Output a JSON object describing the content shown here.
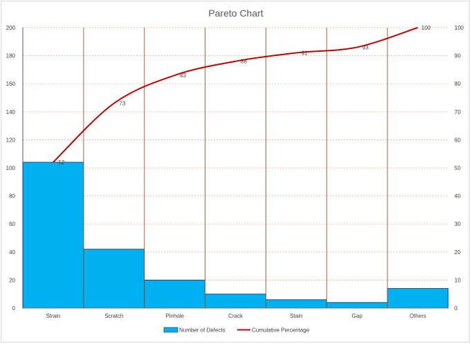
{
  "chart_data": {
    "type": "bar",
    "title": "Pareto Chart",
    "categories": [
      "Strain",
      "Scratch",
      "Pinhole",
      "Crack",
      "Stain",
      "Gap",
      "Others"
    ],
    "series": [
      {
        "name": "Number of Defects",
        "type": "bar",
        "axis": "left",
        "color": "#00b0f0",
        "values": [
          104,
          42,
          20,
          10,
          6,
          4,
          14
        ]
      },
      {
        "name": "Cumulative Percentage",
        "type": "line",
        "axis": "right",
        "color": "#c00000",
        "values": [
          52,
          73,
          83,
          88,
          91,
          93,
          100
        ],
        "labels": [
          "52",
          "73",
          "83",
          "88",
          "91",
          "93",
          "100"
        ]
      }
    ],
    "ylim": [
      0,
      200
    ],
    "yticks": [
      "0",
      "20",
      "40",
      "60",
      "80",
      "100",
      "120",
      "140",
      "160",
      "180",
      "200"
    ],
    "y2lim": [
      0,
      100
    ],
    "y2ticks": [
      "0",
      "10",
      "20",
      "30",
      "40",
      "50",
      "60",
      "70",
      "80",
      "90",
      "100"
    ],
    "grid": true,
    "legend": "bottom",
    "colors": {
      "bar_fill": "#00b0f0",
      "bar_edge": "#1f2d4d",
      "line": "#c00000",
      "gridline": "#f4b183",
      "separator": "#a0522d"
    }
  }
}
